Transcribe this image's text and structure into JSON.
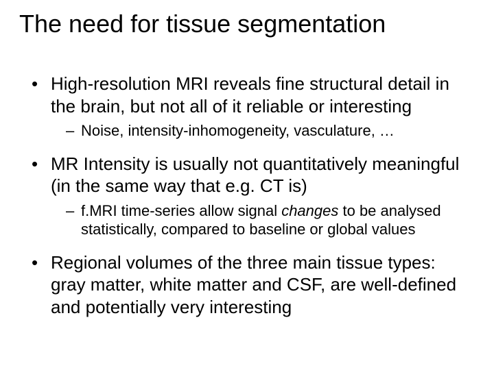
{
  "title": "The need for tissue segmentation",
  "bullets": {
    "b1": "High-resolution MRI reveals fine structural detail in the brain, but not all of it reliable or interesting",
    "b1_sub1": "Noise, intensity-inhomogeneity, vasculature, …",
    "b2": "MR Intensity is usually not quantitatively meaningful (in the same way that e.g. CT is)",
    "b2_sub1_a": "f.MRI time-series allow signal ",
    "b2_sub1_em": "changes",
    "b2_sub1_b": " to be analysed statistically, compared to baseline or global values",
    "b3": "Regional volumes of the three main tissue types: gray matter, white matter and CSF, are well-defined and potentially very interesting"
  },
  "colors": {
    "text": "#000000",
    "background": "#ffffff"
  },
  "typography": {
    "title_fontsize": 36,
    "bullet_fontsize": 26,
    "subbullet_fontsize": 22,
    "font_family": "Arial"
  }
}
